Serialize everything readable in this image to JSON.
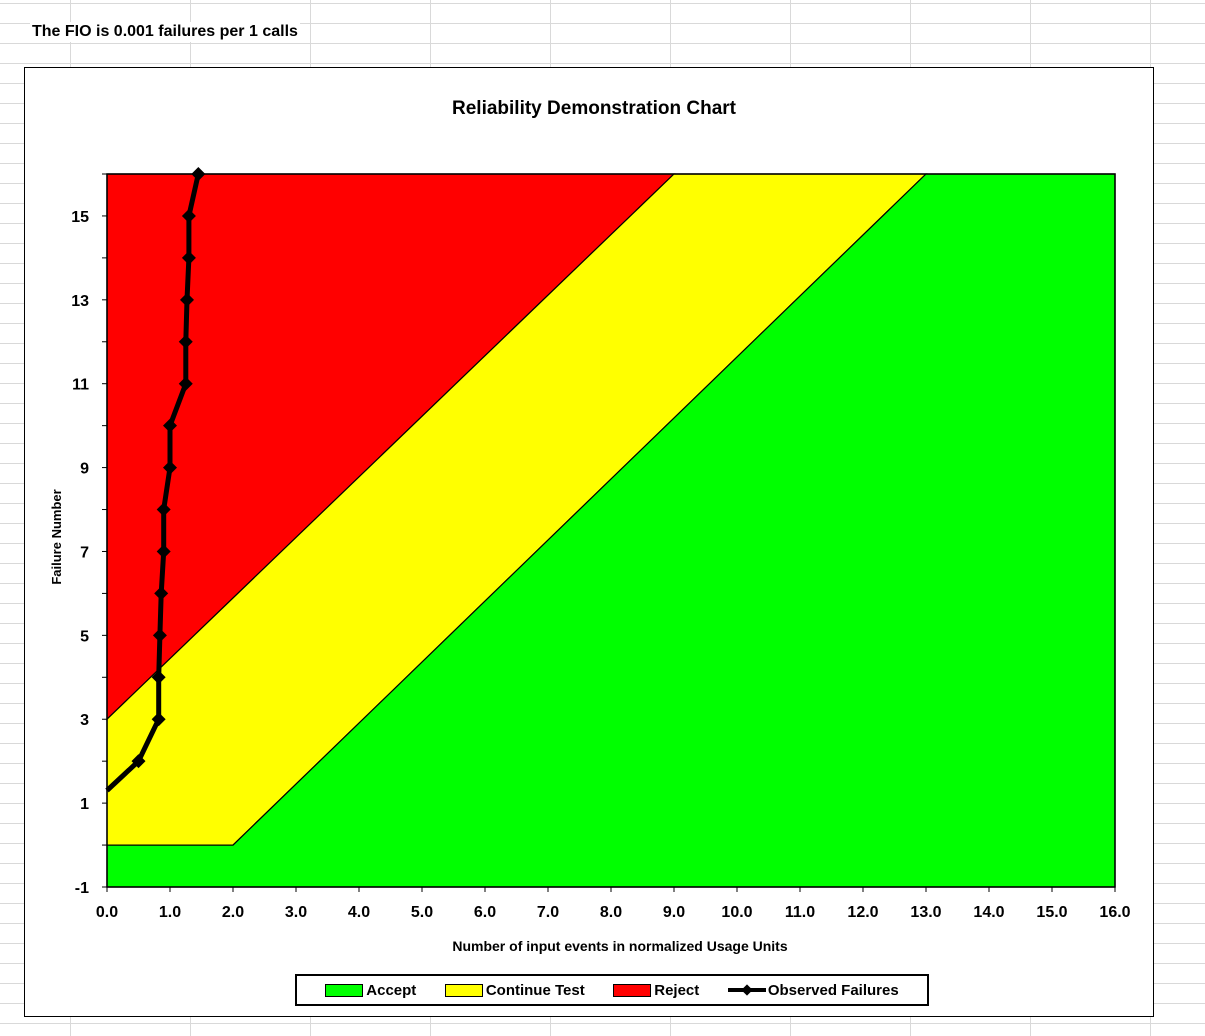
{
  "sheet": {
    "fio_text": "The FIO is 0.001 failures per 1 calls"
  },
  "chart_data": {
    "type": "area",
    "title": "Reliability Demonstration Chart",
    "xlabel": "Number of input events in normalized Usage Units",
    "ylabel": "Failure Number",
    "xlim": [
      0,
      16
    ],
    "ylim": [
      -1,
      16
    ],
    "x_ticks": [
      "0.0",
      "1.0",
      "2.0",
      "3.0",
      "4.0",
      "5.0",
      "6.0",
      "7.0",
      "8.0",
      "9.0",
      "10.0",
      "11.0",
      "12.0",
      "13.0",
      "14.0",
      "15.0",
      "16.0"
    ],
    "y_ticks": [
      "-1",
      "1",
      "3",
      "5",
      "7",
      "9",
      "11",
      "13",
      "15"
    ],
    "regions": [
      {
        "name": "Reject",
        "color": "#ff0000",
        "polygon": [
          [
            0,
            16
          ],
          [
            9.0,
            16
          ],
          [
            0,
            3
          ]
        ]
      },
      {
        "name": "Continue Test",
        "color": "#ffff00",
        "polygon": [
          [
            0,
            3
          ],
          [
            9.0,
            16
          ],
          [
            13.0,
            16
          ],
          [
            2.0,
            0
          ],
          [
            0,
            0
          ]
        ]
      },
      {
        "name": "Accept",
        "color": "#00ff00",
        "polygon": [
          [
            0,
            0
          ],
          [
            2.0,
            0
          ],
          [
            13.0,
            16
          ],
          [
            16,
            16
          ],
          [
            16,
            -1
          ],
          [
            0,
            -1
          ]
        ]
      }
    ],
    "series": [
      {
        "name": "Observed Failures",
        "color": "#000000",
        "points": [
          [
            0,
            1.3
          ],
          [
            0.5,
            2
          ],
          [
            0.82,
            3
          ],
          [
            0.82,
            4
          ],
          [
            0.84,
            5
          ],
          [
            0.86,
            6
          ],
          [
            0.9,
            7
          ],
          [
            0.9,
            8
          ],
          [
            1.0,
            9
          ],
          [
            1.0,
            10
          ],
          [
            1.25,
            11
          ],
          [
            1.25,
            12
          ],
          [
            1.27,
            13
          ],
          [
            1.3,
            14
          ],
          [
            1.3,
            15
          ],
          [
            1.45,
            16
          ]
        ],
        "markers": [
          [
            0.5,
            2
          ],
          [
            0.82,
            3
          ],
          [
            0.82,
            4
          ],
          [
            0.84,
            5
          ],
          [
            0.86,
            6
          ],
          [
            0.9,
            7
          ],
          [
            0.9,
            8
          ],
          [
            1.0,
            9
          ],
          [
            1.0,
            10
          ],
          [
            1.25,
            11
          ],
          [
            1.25,
            12
          ],
          [
            1.27,
            13
          ],
          [
            1.3,
            14
          ],
          [
            1.3,
            15
          ],
          [
            1.45,
            16
          ]
        ]
      }
    ],
    "legend": [
      "Accept",
      "Continue Test",
      "Reject",
      "Observed Failures"
    ],
    "legend_position": "bottom"
  }
}
